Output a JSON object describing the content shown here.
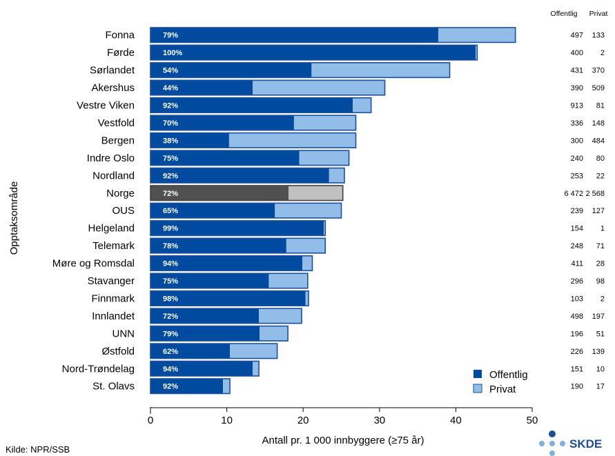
{
  "chart_data": {
    "type": "bar",
    "orientation": "horizontal",
    "stacked": true,
    "ylabel": "Opptaksområde",
    "xlabel": "Antall pr. 1 000 innbyggere (≥75 år)",
    "xlim": [
      0,
      50
    ],
    "xticks": [
      "0",
      "10",
      "20",
      "30",
      "40",
      "50"
    ],
    "grid": false,
    "legend_position": "bottom-right",
    "colors": {
      "offentlig": "#004b9f",
      "privat": "#92bde8",
      "norge_offentlig": "#505050",
      "norge_privat": "#c0c0c0",
      "bar_outline": "#1a4f9c"
    },
    "categories": [
      "Fonna",
      "Førde",
      "Sørlandet",
      "Akershus",
      "Vestre Viken",
      "Vestfold",
      "Bergen",
      "Indre Oslo",
      "Nordland",
      "Norge",
      "OUS",
      "Helgeland",
      "Telemark",
      "Møre og Romsdal",
      "Stavanger",
      "Finnmark",
      "Innlandet",
      "UNN",
      "Østfold",
      "Nord-Trøndelag",
      "St. Olavs"
    ],
    "highlight": "Norge",
    "series": [
      {
        "name": "Offentlig",
        "values": [
          37.7,
          42.6,
          21.1,
          13.4,
          26.5,
          18.8,
          10.3,
          19.5,
          23.4,
          18.1,
          16.3,
          22.7,
          17.8,
          19.9,
          15.5,
          20.3,
          14.2,
          14.3,
          10.4,
          13.4,
          9.5
        ]
      },
      {
        "name": "Privat",
        "values": [
          10.1,
          0.2,
          18.1,
          17.3,
          2.4,
          8.1,
          16.6,
          6.5,
          2.0,
          7.1,
          8.7,
          0.2,
          5.1,
          1.3,
          5.1,
          0.4,
          5.6,
          3.7,
          6.2,
          0.8,
          0.9
        ]
      }
    ],
    "percent_labels": [
      "79%",
      "100%",
      "54%",
      "44%",
      "92%",
      "70%",
      "38%",
      "75%",
      "92%",
      "72%",
      "65%",
      "99%",
      "78%",
      "94%",
      "75%",
      "98%",
      "72%",
      "79%",
      "62%",
      "94%",
      "92%"
    ],
    "count_headers": [
      "Offentlig",
      "Privat"
    ],
    "counts_offentlig": [
      "497",
      "400",
      "431",
      "390",
      "913",
      "336",
      "300",
      "240",
      "253",
      "6 472",
      "239",
      "154",
      "248",
      "411",
      "296",
      "103",
      "498",
      "196",
      "226",
      "151",
      "190"
    ],
    "counts_privat": [
      "133",
      "2",
      "370",
      "509",
      "81",
      "148",
      "484",
      "80",
      "22",
      "2 568",
      "127",
      "1",
      "71",
      "28",
      "98",
      "2",
      "197",
      "51",
      "139",
      "10",
      "17"
    ]
  },
  "source": "Kilde: NPR/SSB",
  "logo": {
    "text": "SKDE",
    "color": "#1f4e96"
  }
}
